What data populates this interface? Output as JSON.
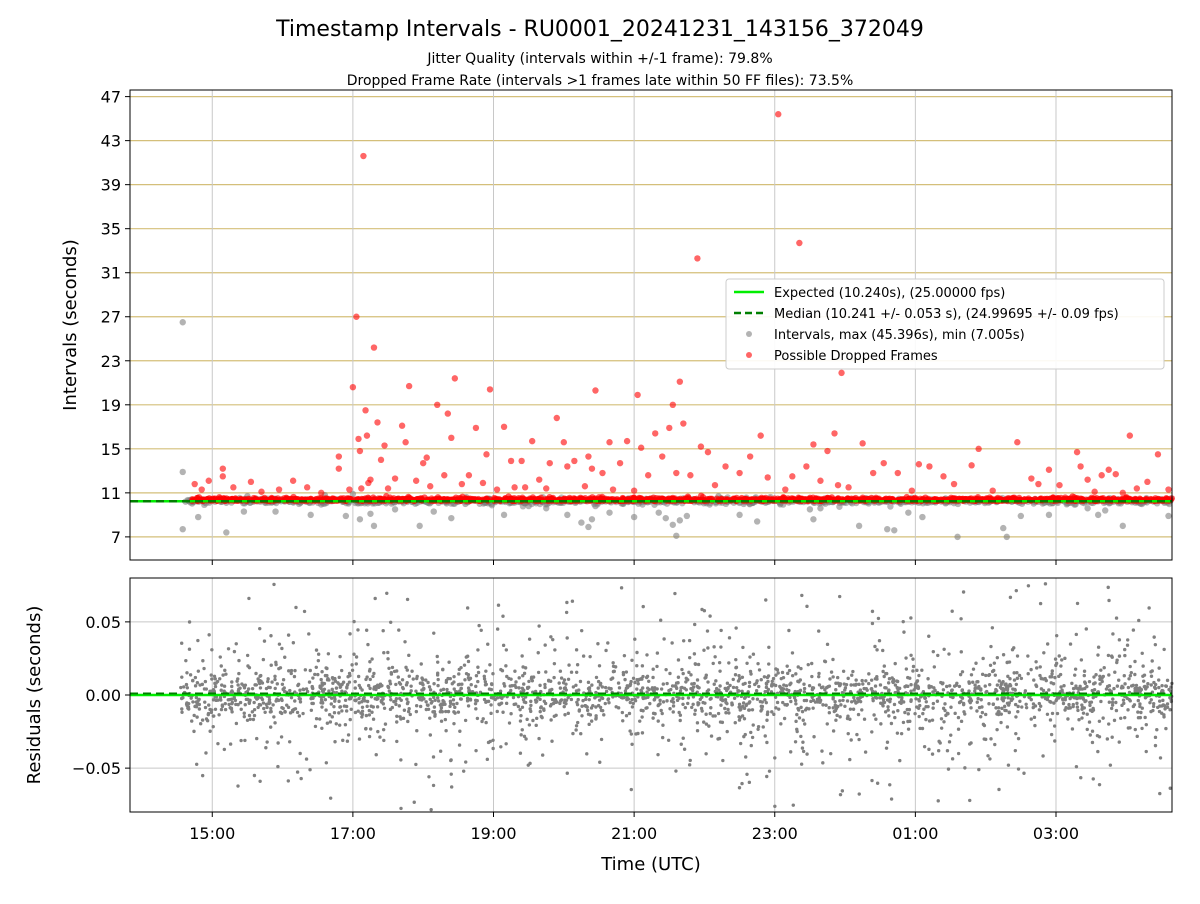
{
  "chart_data": [
    {
      "type": "scatter",
      "title": "Timestamp Intervals - RU0001_20241231_143156_372049",
      "subtitle_1": "Jitter Quality (intervals within +/-1 frame): 79.8%",
      "subtitle_2": "Dropped Frame Rate (intervals >1 frames late within 50 FF files): 73.5%",
      "xlabel": "",
      "ylabel": "Intervals (seconds)",
      "x_domain_hours": [
        13.83,
        28.65
      ],
      "ylim": [
        4.9,
        47.6
      ],
      "y_ticks": [
        7,
        11,
        15,
        19,
        23,
        27,
        31,
        35,
        39,
        43,
        47
      ],
      "y_tick_labels": [
        "7",
        "11",
        "15",
        "19",
        "23",
        "27",
        "31",
        "35",
        "39",
        "43",
        "47"
      ],
      "grid": true,
      "legend_position": "center-right",
      "legend": [
        "Expected (10.240s), (25.00000 fps)",
        "Median (10.241 +/- 0.053 s), (24.99695 +/- 0.09 fps)",
        "Intervals, max (45.396s), min (7.005s)",
        "Possible Dropped Frames"
      ],
      "series": [
        {
          "name": "Expected (10.240s), (25.00000 fps)",
          "kind": "hline",
          "value": 10.24,
          "color": "#00ee00"
        },
        {
          "name": "Median (10.241 +/- 0.053 s), (24.99695 +/- 0.09 fps)",
          "kind": "hline",
          "value": 10.241,
          "color": "#007f00"
        },
        {
          "name": "Intervals, max (45.396s), min (7.005s)",
          "kind": "scatter",
          "color": "#808080",
          "x_hours": [
            14.58,
            14.58,
            14.58,
            14.62,
            14.8,
            14.8,
            15.2,
            15.2,
            15.45,
            15.5,
            15.75,
            15.9,
            16.4,
            16.6,
            16.8,
            16.9,
            17.0,
            17.1,
            17.15,
            17.25,
            17.3,
            17.45,
            17.6,
            17.95,
            18.15,
            18.4,
            18.6,
            19.15,
            19.5,
            19.75,
            19.9,
            20.05,
            20.25,
            20.35,
            20.4,
            20.45,
            20.65,
            21.0,
            21.35,
            21.45,
            21.55,
            21.6,
            21.65,
            21.7,
            21.75,
            22.2,
            22.5,
            22.75,
            23.1,
            23.5,
            23.55,
            23.65,
            23.8,
            24.2,
            24.6,
            24.7,
            24.9,
            25.1,
            25.6,
            26.25,
            26.3,
            26.45,
            26.5,
            26.9,
            27.2,
            27.45,
            27.6,
            27.7,
            27.95,
            28.6
          ],
          "values": [
            26.5,
            12.9,
            7.7,
            10.2,
            8.8,
            10.4,
            7.4,
            10.1,
            9.3,
            10.7,
            10.4,
            9.3,
            9.0,
            10.8,
            10.4,
            8.9,
            10.9,
            8.6,
            10.3,
            9.1,
            8.0,
            10.4,
            9.5,
            8.0,
            9.3,
            8.7,
            10.0,
            9.0,
            9.8,
            9.6,
            10.2,
            9.0,
            8.3,
            7.9,
            8.6,
            9.8,
            9.2,
            8.8,
            9.2,
            8.7,
            8.1,
            7.1,
            8.5,
            10.5,
            8.9,
            10.7,
            9.0,
            8.4,
            10.4,
            9.5,
            8.6,
            9.6,
            10.2,
            8.0,
            7.7,
            7.6,
            9.2,
            8.8,
            7.0,
            7.8,
            7.0,
            10.2,
            8.9,
            9.0,
            10.1,
            9.6,
            9.0,
            9.4,
            8.0,
            8.9
          ]
        },
        {
          "name": "Possible Dropped Frames",
          "kind": "scatter",
          "color": "#ff0000",
          "x_hours": [
            14.75,
            14.85,
            14.95,
            15.1,
            15.15,
            15.15,
            15.3,
            15.55,
            15.7,
            15.95,
            16.15,
            16.35,
            16.55,
            16.8,
            16.8,
            16.95,
            17.0,
            17.05,
            17.08,
            17.1,
            17.12,
            17.15,
            17.18,
            17.2,
            17.22,
            17.25,
            17.3,
            17.35,
            17.4,
            17.45,
            17.5,
            17.6,
            17.7,
            17.75,
            17.8,
            17.9,
            18.0,
            18.05,
            18.1,
            18.2,
            18.3,
            18.35,
            18.4,
            18.45,
            18.55,
            18.65,
            18.75,
            18.85,
            18.9,
            18.95,
            19.05,
            19.15,
            19.25,
            19.3,
            19.4,
            19.45,
            19.55,
            19.65,
            19.75,
            19.8,
            19.9,
            20.0,
            20.05,
            20.15,
            20.3,
            20.35,
            20.4,
            20.45,
            20.55,
            20.65,
            20.7,
            20.8,
            20.9,
            21.0,
            21.05,
            21.1,
            21.2,
            21.3,
            21.4,
            21.5,
            21.55,
            21.6,
            21.65,
            21.7,
            21.8,
            21.9,
            21.95,
            22.05,
            22.15,
            22.3,
            22.5,
            22.65,
            22.8,
            22.9,
            23.05,
            23.15,
            23.25,
            23.35,
            23.45,
            23.55,
            23.65,
            23.75,
            23.85,
            23.9,
            23.95,
            24.05,
            24.25,
            24.4,
            24.55,
            24.75,
            24.95,
            25.05,
            25.2,
            25.4,
            25.55,
            25.8,
            25.9,
            26.1,
            26.45,
            26.65,
            26.75,
            26.9,
            27.05,
            27.3,
            27.35,
            27.45,
            27.55,
            27.65,
            27.75,
            27.85,
            27.95,
            28.05,
            28.15,
            28.3,
            28.45,
            28.6
          ],
          "values": [
            11.8,
            11.3,
            12.1,
            10.6,
            13.2,
            12.5,
            11.5,
            12.0,
            11.1,
            11.3,
            12.1,
            11.5,
            11.0,
            14.3,
            13.2,
            11.3,
            20.6,
            27.0,
            15.9,
            14.8,
            11.4,
            41.6,
            18.5,
            16.2,
            11.9,
            12.2,
            24.2,
            17.4,
            14.0,
            15.3,
            11.4,
            12.3,
            17.1,
            15.6,
            20.7,
            12.1,
            13.7,
            14.2,
            11.6,
            19.0,
            12.6,
            18.2,
            16.0,
            21.4,
            11.8,
            12.6,
            16.9,
            11.9,
            14.5,
            20.4,
            11.3,
            17.0,
            13.9,
            11.5,
            13.9,
            11.5,
            15.7,
            12.2,
            11.4,
            13.7,
            17.8,
            15.6,
            13.4,
            13.9,
            11.6,
            14.3,
            13.2,
            20.3,
            12.8,
            15.6,
            11.3,
            13.7,
            15.7,
            11.2,
            19.9,
            15.1,
            12.6,
            16.4,
            14.3,
            16.9,
            19.0,
            12.8,
            21.1,
            17.3,
            12.6,
            32.3,
            15.2,
            14.7,
            11.7,
            13.4,
            12.8,
            14.3,
            16.2,
            12.4,
            45.4,
            11.3,
            12.5,
            33.7,
            13.4,
            15.4,
            12.1,
            14.8,
            16.4,
            11.7,
            21.9,
            11.5,
            15.5,
            12.8,
            13.7,
            12.8,
            11.2,
            13.6,
            13.4,
            12.5,
            11.8,
            13.5,
            15.0,
            11.2,
            15.6,
            12.3,
            11.8,
            13.1,
            11.7,
            14.7,
            13.4,
            12.2,
            11.1,
            12.6,
            13.1,
            12.7,
            11.0,
            16.2,
            11.4,
            12.0,
            14.5,
            11.3
          ]
        }
      ]
    },
    {
      "type": "scatter",
      "title": "",
      "xlabel": "Time (UTC)",
      "ylabel": "Residuals (seconds)",
      "x_domain_hours": [
        13.83,
        28.65
      ],
      "ylim": [
        -0.08,
        0.08
      ],
      "y_ticks": [
        -0.05,
        0.0,
        0.05
      ],
      "y_tick_labels": [
        "−0.05",
        "0.00",
        "0.05"
      ],
      "x_ticks_hours": [
        15,
        17,
        19,
        21,
        23,
        25,
        27
      ],
      "x_tick_labels": [
        "15:00",
        "17:00",
        "19:00",
        "21:00",
        "23:00",
        "01:00",
        "03:00"
      ],
      "grid": true,
      "series": [
        {
          "name": "",
          "kind": "hline",
          "value": 0.0,
          "color": "#00ee00"
        },
        {
          "name": "",
          "kind": "hline",
          "value": 0.001,
          "color": "#007f00"
        },
        {
          "name": "",
          "kind": "scatter_cloud",
          "color": "#808080",
          "x_range_hours": [
            14.55,
            28.65
          ],
          "core_spread": 0.008,
          "outer_spread": 0.08
        }
      ]
    }
  ],
  "colors": {
    "expected": "#00ee00",
    "median": "#007f00",
    "intervals": "#808080",
    "dropped": "#ff0000",
    "grid_horizontal_top": "#d4bf7a",
    "grid_default": "#c8c8c8"
  }
}
